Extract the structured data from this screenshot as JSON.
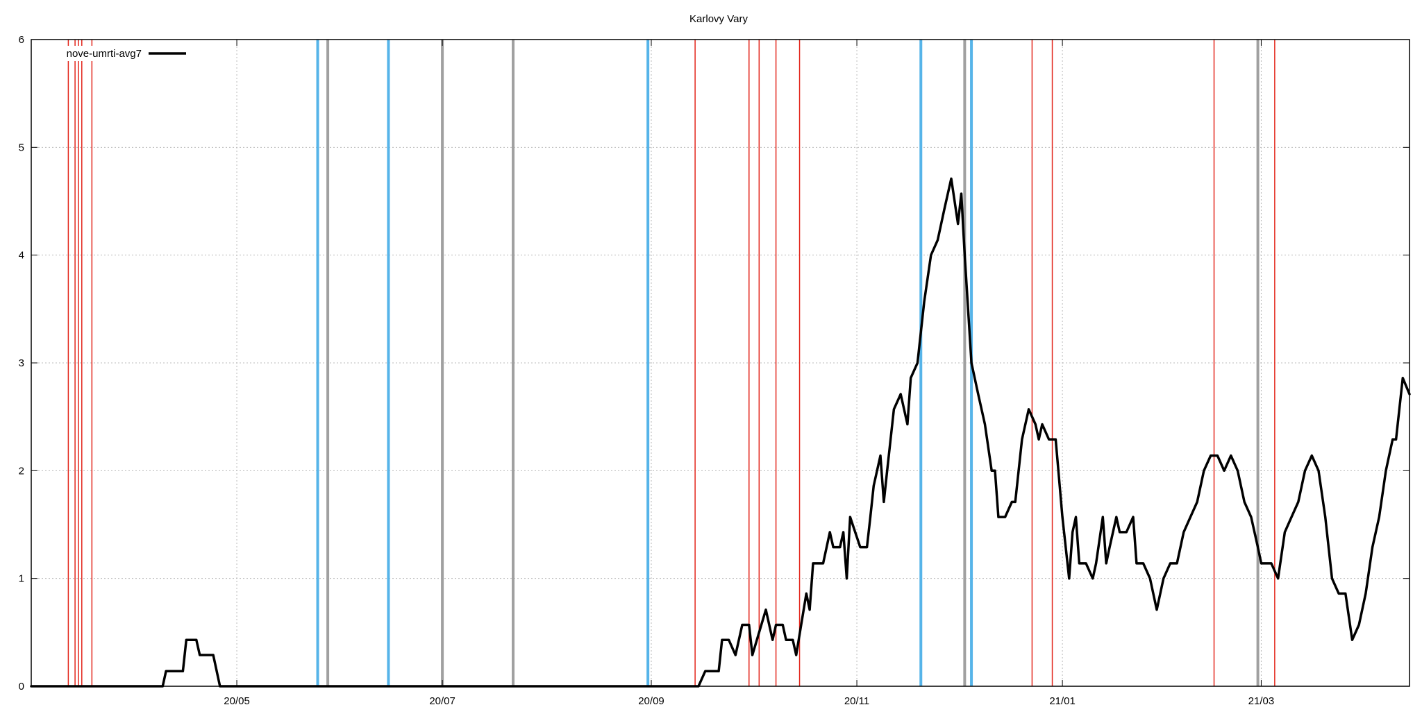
{
  "chart_data": {
    "type": "line",
    "title": "Karlovy Vary",
    "xlabel": "",
    "ylabel": "",
    "x_start": "2020-03-01",
    "x_end": "2021-04-14",
    "ylim": [
      0,
      6
    ],
    "y_ticks": [
      0,
      1,
      2,
      3,
      4,
      5,
      6
    ],
    "x_ticks": [
      {
        "date": "2020-05-01",
        "label": "20/05"
      },
      {
        "date": "2020-07-01",
        "label": "20/07"
      },
      {
        "date": "2020-09-01",
        "label": "20/09"
      },
      {
        "date": "2020-11-01",
        "label": "20/11"
      },
      {
        "date": "2021-01-01",
        "label": "21/01"
      },
      {
        "date": "2021-03-01",
        "label": "21/03"
      }
    ],
    "grid": true,
    "legend_position": "top-left",
    "series": [
      {
        "name": "nove-umrti-avg7",
        "color": "#000000",
        "points": [
          [
            "2020-03-01",
            0
          ],
          [
            "2020-04-09",
            0
          ],
          [
            "2020-04-10",
            0.14
          ],
          [
            "2020-04-15",
            0.14
          ],
          [
            "2020-04-16",
            0.43
          ],
          [
            "2020-04-19",
            0.43
          ],
          [
            "2020-04-20",
            0.29
          ],
          [
            "2020-04-24",
            0.29
          ],
          [
            "2020-04-26",
            0
          ],
          [
            "2020-09-15",
            0
          ],
          [
            "2020-09-17",
            0.14
          ],
          [
            "2020-09-21",
            0.14
          ],
          [
            "2020-09-22",
            0.43
          ],
          [
            "2020-09-24",
            0.43
          ],
          [
            "2020-09-26",
            0.29
          ],
          [
            "2020-09-28",
            0.57
          ],
          [
            "2020-09-30",
            0.57
          ],
          [
            "2020-10-01",
            0.29
          ],
          [
            "2020-10-05",
            0.71
          ],
          [
            "2020-10-07",
            0.43
          ],
          [
            "2020-10-08",
            0.57
          ],
          [
            "2020-10-10",
            0.57
          ],
          [
            "2020-10-11",
            0.43
          ],
          [
            "2020-10-13",
            0.43
          ],
          [
            "2020-10-14",
            0.29
          ],
          [
            "2020-10-17",
            0.86
          ],
          [
            "2020-10-18",
            0.71
          ],
          [
            "2020-10-19",
            1.14
          ],
          [
            "2020-10-22",
            1.14
          ],
          [
            "2020-10-24",
            1.43
          ],
          [
            "2020-10-25",
            1.29
          ],
          [
            "2020-10-27",
            1.29
          ],
          [
            "2020-10-28",
            1.43
          ],
          [
            "2020-10-29",
            1.0
          ],
          [
            "2020-10-30",
            1.57
          ],
          [
            "2020-11-02",
            1.29
          ],
          [
            "2020-11-04",
            1.29
          ],
          [
            "2020-11-05",
            1.57
          ],
          [
            "2020-11-06",
            1.86
          ],
          [
            "2020-11-08",
            2.14
          ],
          [
            "2020-11-09",
            1.71
          ],
          [
            "2020-11-10",
            2.0
          ],
          [
            "2020-11-12",
            2.57
          ],
          [
            "2020-11-14",
            2.71
          ],
          [
            "2020-11-16",
            2.43
          ],
          [
            "2020-11-17",
            2.86
          ],
          [
            "2020-11-19",
            3.0
          ],
          [
            "2020-11-21",
            3.57
          ],
          [
            "2020-11-23",
            4.0
          ],
          [
            "2020-11-25",
            4.14
          ],
          [
            "2020-11-27",
            4.43
          ],
          [
            "2020-11-29",
            4.71
          ],
          [
            "2020-12-01",
            4.29
          ],
          [
            "2020-12-02",
            4.57
          ],
          [
            "2020-12-03",
            4.0
          ],
          [
            "2020-12-05",
            3.0
          ],
          [
            "2020-12-07",
            2.71
          ],
          [
            "2020-12-09",
            2.43
          ],
          [
            "2020-12-11",
            2.0
          ],
          [
            "2020-12-12",
            2.0
          ],
          [
            "2020-12-13",
            1.57
          ],
          [
            "2020-12-15",
            1.57
          ],
          [
            "2020-12-17",
            1.71
          ],
          [
            "2020-12-18",
            1.71
          ],
          [
            "2020-12-20",
            2.29
          ],
          [
            "2020-12-22",
            2.57
          ],
          [
            "2020-12-24",
            2.43
          ],
          [
            "2020-12-25",
            2.29
          ],
          [
            "2020-12-26",
            2.43
          ],
          [
            "2020-12-28",
            2.29
          ],
          [
            "2020-12-30",
            2.29
          ],
          [
            "2021-01-01",
            1.57
          ],
          [
            "2021-01-03",
            1.0
          ],
          [
            "2021-01-04",
            1.43
          ],
          [
            "2021-01-05",
            1.57
          ],
          [
            "2021-01-06",
            1.14
          ],
          [
            "2021-01-08",
            1.14
          ],
          [
            "2021-01-10",
            1.0
          ],
          [
            "2021-01-11",
            1.14
          ],
          [
            "2021-01-13",
            1.57
          ],
          [
            "2021-01-14",
            1.14
          ],
          [
            "2021-01-15",
            1.29
          ],
          [
            "2021-01-17",
            1.57
          ],
          [
            "2021-01-18",
            1.43
          ],
          [
            "2021-01-20",
            1.43
          ],
          [
            "2021-01-22",
            1.57
          ],
          [
            "2021-01-23",
            1.14
          ],
          [
            "2021-01-25",
            1.14
          ],
          [
            "2021-01-27",
            1.0
          ],
          [
            "2021-01-29",
            0.71
          ],
          [
            "2021-01-31",
            1.0
          ],
          [
            "2021-02-02",
            1.14
          ],
          [
            "2021-02-04",
            1.14
          ],
          [
            "2021-02-06",
            1.43
          ],
          [
            "2021-02-08",
            1.57
          ],
          [
            "2021-02-10",
            1.71
          ],
          [
            "2021-02-12",
            2.0
          ],
          [
            "2021-02-14",
            2.14
          ],
          [
            "2021-02-16",
            2.14
          ],
          [
            "2021-02-18",
            2.0
          ],
          [
            "2021-02-20",
            2.14
          ],
          [
            "2021-02-22",
            2.0
          ],
          [
            "2021-02-24",
            1.71
          ],
          [
            "2021-02-26",
            1.57
          ],
          [
            "2021-02-28",
            1.29
          ],
          [
            "2021-03-01",
            1.14
          ],
          [
            "2021-03-04",
            1.14
          ],
          [
            "2021-03-06",
            1.0
          ],
          [
            "2021-03-08",
            1.43
          ],
          [
            "2021-03-10",
            1.57
          ],
          [
            "2021-03-12",
            1.71
          ],
          [
            "2021-03-14",
            2.0
          ],
          [
            "2021-03-16",
            2.14
          ],
          [
            "2021-03-18",
            2.0
          ],
          [
            "2021-03-20",
            1.57
          ],
          [
            "2021-03-22",
            1.0
          ],
          [
            "2021-03-24",
            0.86
          ],
          [
            "2021-03-26",
            0.86
          ],
          [
            "2021-03-28",
            0.43
          ],
          [
            "2021-03-30",
            0.57
          ],
          [
            "2021-04-01",
            0.86
          ],
          [
            "2021-04-03",
            1.29
          ],
          [
            "2021-04-05",
            1.57
          ],
          [
            "2021-04-07",
            2.0
          ],
          [
            "2021-04-09",
            2.29
          ],
          [
            "2021-04-10",
            2.29
          ],
          [
            "2021-04-12",
            2.86
          ],
          [
            "2021-04-14",
            2.71
          ]
        ]
      }
    ],
    "vertical_markers": [
      {
        "date": "2020-03-12",
        "color": "red"
      },
      {
        "date": "2020-03-14",
        "color": "red"
      },
      {
        "date": "2020-03-15",
        "color": "red"
      },
      {
        "date": "2020-03-16",
        "color": "red"
      },
      {
        "date": "2020-03-19",
        "color": "red"
      },
      {
        "date": "2020-05-25",
        "color": "blue"
      },
      {
        "date": "2020-05-28",
        "color": "gray"
      },
      {
        "date": "2020-06-15",
        "color": "blue"
      },
      {
        "date": "2020-07-01",
        "color": "gray"
      },
      {
        "date": "2020-07-22",
        "color": "gray"
      },
      {
        "date": "2020-08-31",
        "color": "blue"
      },
      {
        "date": "2020-09-14",
        "color": "red"
      },
      {
        "date": "2020-09-30",
        "color": "red"
      },
      {
        "date": "2020-10-03",
        "color": "red"
      },
      {
        "date": "2020-10-08",
        "color": "red"
      },
      {
        "date": "2020-10-15",
        "color": "red"
      },
      {
        "date": "2020-11-20",
        "color": "blue"
      },
      {
        "date": "2020-12-03",
        "color": "gray"
      },
      {
        "date": "2020-12-05",
        "color": "blue"
      },
      {
        "date": "2020-12-23",
        "color": "red"
      },
      {
        "date": "2020-12-29",
        "color": "red"
      },
      {
        "date": "2021-02-15",
        "color": "red"
      },
      {
        "date": "2021-02-28",
        "color": "gray"
      },
      {
        "date": "2021-03-05",
        "color": "red"
      }
    ]
  },
  "colors": {
    "series": "#000000",
    "red_marker": "#e3261c",
    "blue_marker": "#56b4e9",
    "gray_marker": "#a0a0a0",
    "grid": "#b8b8b8"
  }
}
